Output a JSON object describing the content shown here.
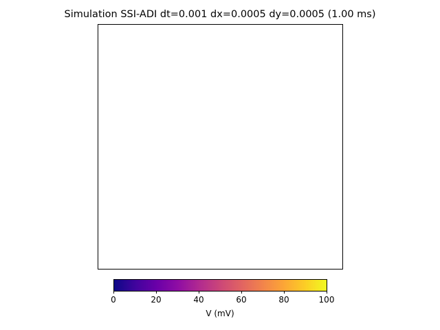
{
  "title": "Simulation SSI-ADI dt=0.001 dx=0.0005 dy=0.0005 (1.00 ms)",
  "chart_data": {
    "type": "heatmap",
    "title": "Simulation SSI-ADI dt=0.001 dx=0.0005 dy=0.0005 (1.00 ms)",
    "xlabel": "",
    "ylabel": "",
    "axes_visible": false,
    "grid": false,
    "colormap": "plasma",
    "colorbar": {
      "orientation": "horizontal",
      "placement": "bottom",
      "label": "V (mV)",
      "vmin": 0,
      "vmax": 100,
      "ticks": [
        0,
        20,
        40,
        60,
        80,
        100
      ],
      "tick_labels": [
        "0",
        "20",
        "40",
        "60",
        "80",
        "100"
      ]
    },
    "colors": {
      "cmap_stops": [
        "#0d0887",
        "#41049d",
        "#6a00a8",
        "#8f0da4",
        "#b12a90",
        "#cc4778",
        "#e16462",
        "#f2844b",
        "#fca636",
        "#fcce25",
        "#f0f921"
      ],
      "frame": "#000000",
      "background": "#ffffff"
    }
  }
}
